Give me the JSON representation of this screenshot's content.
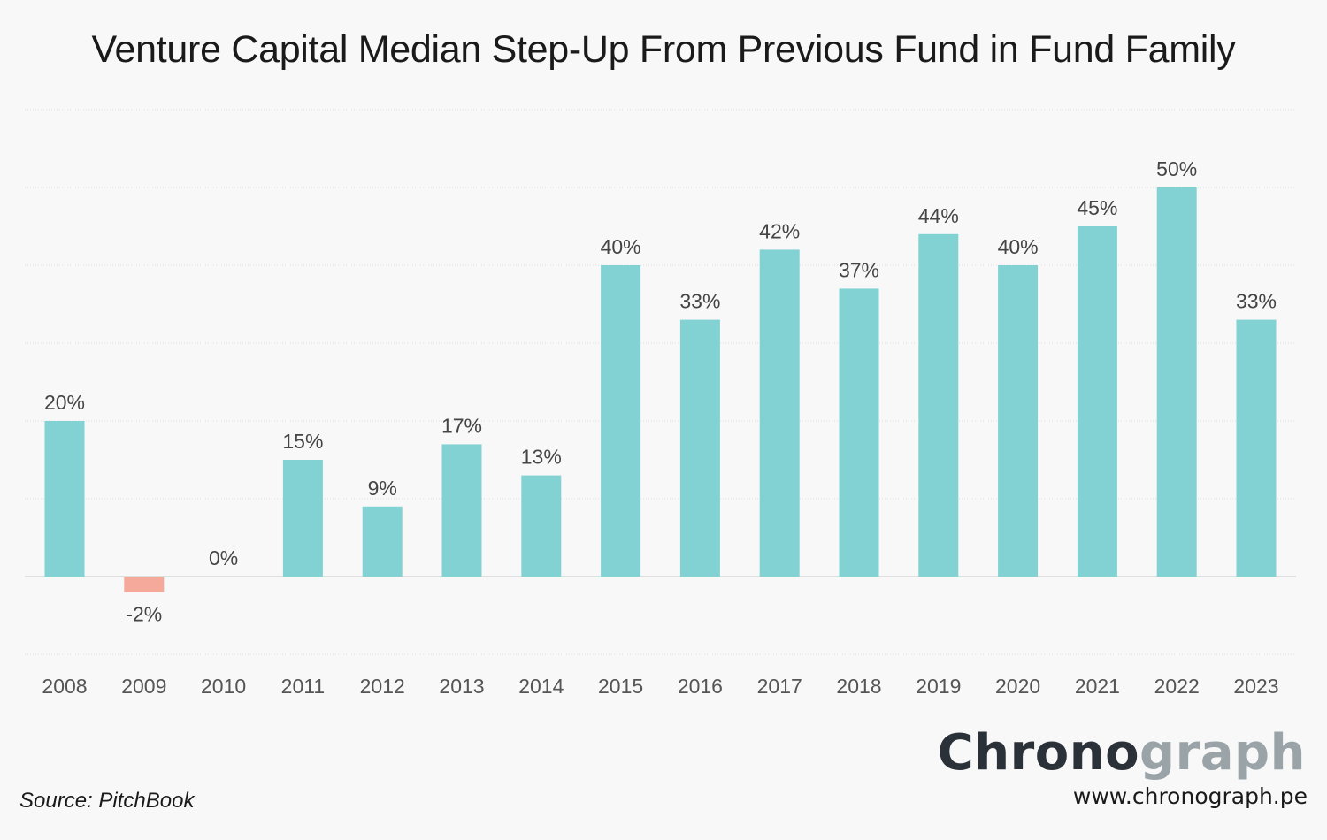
{
  "chart_data": {
    "type": "bar",
    "title": "Venture Capital Median Step-Up From Previous Fund in Fund Family",
    "categories": [
      "2008",
      "2009",
      "2010",
      "2011",
      "2012",
      "2013",
      "2014",
      "2015",
      "2016",
      "2017",
      "2018",
      "2019",
      "2020",
      "2021",
      "2022",
      "2023"
    ],
    "values": [
      20,
      -2,
      0,
      15,
      9,
      17,
      13,
      40,
      33,
      42,
      37,
      44,
      40,
      45,
      50,
      33
    ],
    "data_labels": [
      "20%",
      "-2%",
      "0%",
      "15%",
      "9%",
      "17%",
      "13%",
      "40%",
      "33%",
      "42%",
      "37%",
      "44%",
      "40%",
      "45%",
      "50%",
      "33%"
    ],
    "xlabel": "",
    "ylabel": "",
    "ylim": [
      -10,
      60
    ],
    "gridline_step": 10,
    "grid": true,
    "colors": {
      "positive": "#83d2d3",
      "negative": "#f4a99a",
      "gridline": "#dcdcdc",
      "zero_line": "#d0d0d0",
      "label_text": "#444444",
      "tick_text": "#555555"
    }
  },
  "footer": {
    "source": "Source: PitchBook",
    "brand_dark": "Chrono",
    "brand_light": "graph",
    "url": "www.chronograph.pe"
  }
}
